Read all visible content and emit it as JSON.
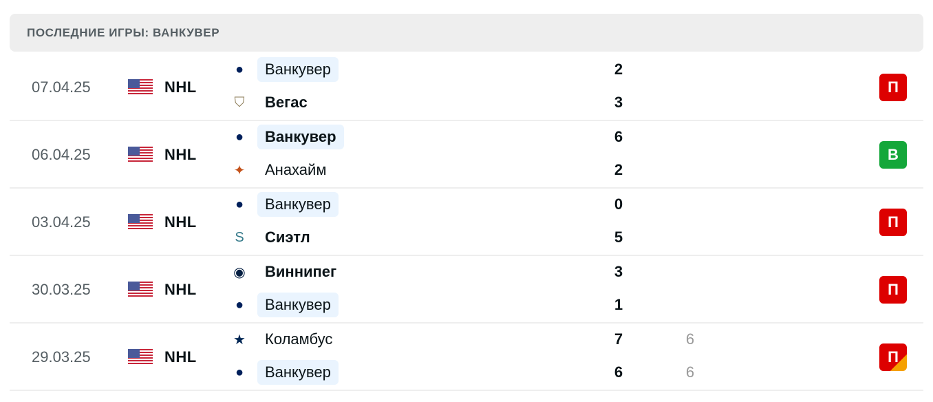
{
  "header": {
    "title": "ПОСЛЕДНИЕ ИГРЫ: ВАНКУВЕР"
  },
  "colors": {
    "loss": "#dd0000",
    "win": "#14a73a",
    "overtime": "#f5a000",
    "highlight": "#eaf4fe"
  },
  "matches": [
    {
      "date": "07.04.25",
      "league": "NHL",
      "country_flag": "usa-flag",
      "home": {
        "name": "Ванкувер",
        "logo": "canucks-logo",
        "score": "2",
        "winner": false,
        "highlight": true
      },
      "away": {
        "name": "Вегас",
        "logo": "golden-knights-logo",
        "score": "3",
        "winner": true,
        "highlight": false
      },
      "result": "П",
      "result_type": "loss"
    },
    {
      "date": "06.04.25",
      "league": "NHL",
      "country_flag": "usa-flag",
      "home": {
        "name": "Ванкувер",
        "logo": "canucks-logo",
        "score": "6",
        "winner": true,
        "highlight": true
      },
      "away": {
        "name": "Анахайм",
        "logo": "ducks-logo",
        "score": "2",
        "winner": false,
        "highlight": false
      },
      "result": "В",
      "result_type": "win"
    },
    {
      "date": "03.04.25",
      "league": "NHL",
      "country_flag": "usa-flag",
      "home": {
        "name": "Ванкувер",
        "logo": "canucks-logo",
        "score": "0",
        "winner": false,
        "highlight": true
      },
      "away": {
        "name": "Сиэтл",
        "logo": "kraken-logo",
        "score": "5",
        "winner": true,
        "highlight": false
      },
      "result": "П",
      "result_type": "loss"
    },
    {
      "date": "30.03.25",
      "league": "NHL",
      "country_flag": "usa-flag",
      "home": {
        "name": "Виннипег",
        "logo": "jets-logo",
        "score": "3",
        "winner": true,
        "highlight": false
      },
      "away": {
        "name": "Ванкувер",
        "logo": "canucks-logo",
        "score": "1",
        "winner": false,
        "highlight": true
      },
      "result": "П",
      "result_type": "loss"
    },
    {
      "date": "29.03.25",
      "league": "NHL",
      "country_flag": "usa-flag",
      "home": {
        "name": "Коламбус",
        "logo": "blue-jackets-logo",
        "score": "7",
        "sub_score": "6",
        "winner": false,
        "highlight": false
      },
      "away": {
        "name": "Ванкувер",
        "logo": "canucks-logo",
        "score": "6",
        "sub_score": "6",
        "winner": false,
        "highlight": true
      },
      "result": "П",
      "result_type": "overtime-loss"
    }
  ]
}
